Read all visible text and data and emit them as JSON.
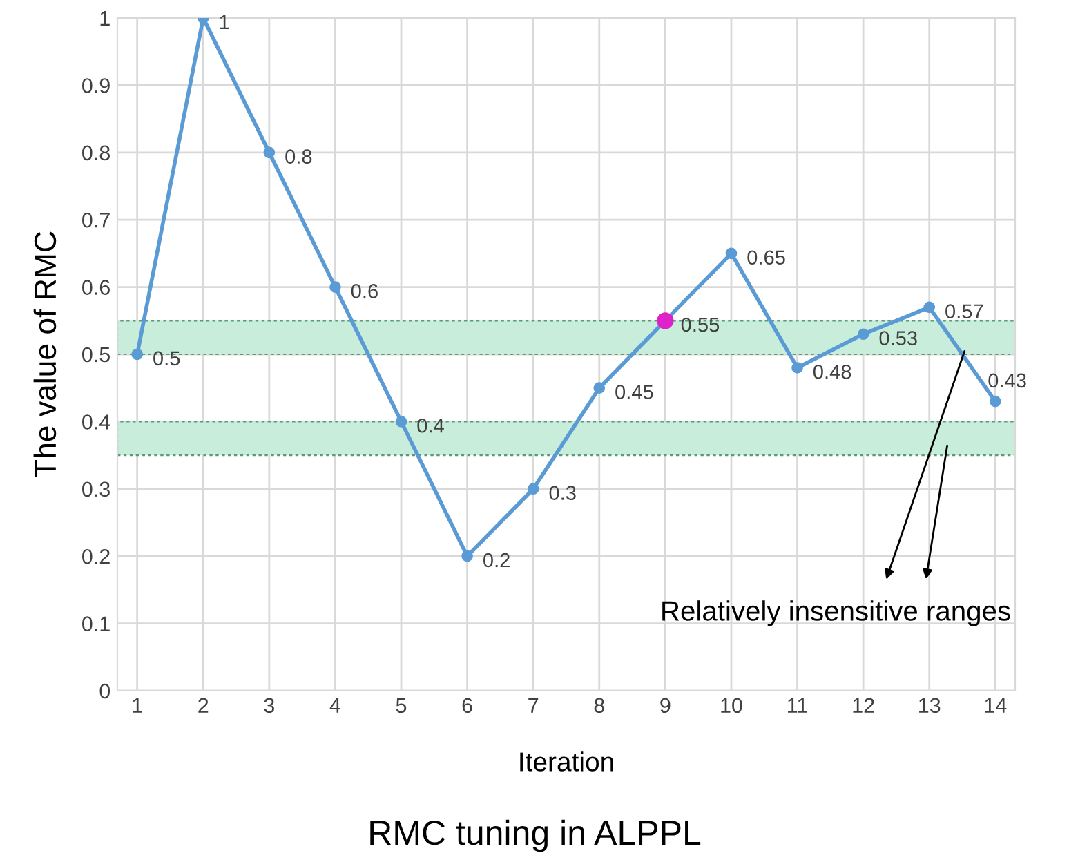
{
  "chart_data": {
    "type": "line",
    "title": "RMC tuning in ALPPL",
    "xlabel": "Iteration",
    "ylabel": "The value of RMC",
    "categories": [
      "1",
      "2",
      "3",
      "4",
      "5",
      "6",
      "7",
      "8",
      "9",
      "10",
      "11",
      "12",
      "13",
      "14"
    ],
    "series": [
      {
        "color": "#5b9bd5",
        "values": [
          0.5,
          1,
          0.8,
          0.6,
          0.4,
          0.2,
          0.3,
          0.45,
          0.55,
          0.65,
          0.48,
          0.53,
          0.57,
          0.43
        ],
        "marker": "circle",
        "data_labels": true
      },
      {
        "type": "scatter",
        "color": "#e020c8",
        "x": [
          "9"
        ],
        "values": [
          0.55
        ],
        "marker": "circle"
      }
    ],
    "ylim": [
      0,
      1
    ],
    "yticks": [
      0,
      0.1,
      0.2,
      0.3,
      0.4,
      0.5,
      0.6,
      0.7,
      0.8,
      0.9,
      1
    ],
    "grid": true,
    "bands": [
      {
        "axis": "y",
        "from": 0.5,
        "to": 0.55,
        "color": "#c8eedb"
      },
      {
        "axis": "y",
        "from": 0.35,
        "to": 0.4,
        "color": "#c8eedb"
      }
    ],
    "annotations": [
      "Relatively insensitive ranges"
    ]
  }
}
